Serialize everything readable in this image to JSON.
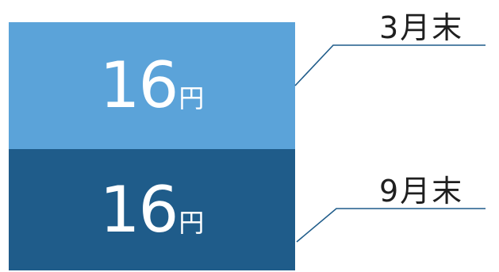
{
  "chart_data": {
    "type": "bar",
    "categories": [
      "3月末",
      "9月末"
    ],
    "series": [
      {
        "values": [
          16,
          16
        ]
      }
    ],
    "unit": "円",
    "colors": [
      "#5ba3d9",
      "#1f5c8a"
    ]
  },
  "blocks": [
    {
      "value": "16",
      "unit": "円",
      "label": "3月末",
      "color": "#5ba3d9"
    },
    {
      "value": "16",
      "unit": "円",
      "label": "9月末",
      "color": "#1f5c8a"
    }
  ],
  "line_color": "#1f5c8a"
}
